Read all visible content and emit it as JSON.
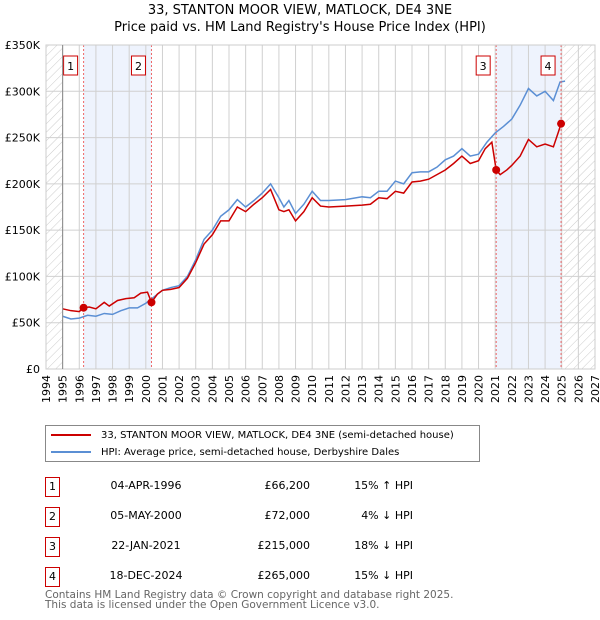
{
  "chart_data": {
    "type": "line",
    "title": "33, STANTON MOOR VIEW, MATLOCK, DE4 3NE",
    "subtitle": "Price paid vs. HM Land Registry's House Price Index (HPI)",
    "xlim": [
      1994,
      2027
    ],
    "ylim": [
      0,
      350000
    ],
    "x_ticks": [
      "1994",
      "1995",
      "1996",
      "1997",
      "1998",
      "1999",
      "2000",
      "2001",
      "2002",
      "2003",
      "2004",
      "2005",
      "2006",
      "2007",
      "2008",
      "2009",
      "2010",
      "2011",
      "2012",
      "2013",
      "2014",
      "2015",
      "2016",
      "2017",
      "2018",
      "2019",
      "2020",
      "2021",
      "2022",
      "2023",
      "2024",
      "2025",
      "2026",
      "2027"
    ],
    "y_ticks": [
      {
        "v": 0,
        "label": "£0"
      },
      {
        "v": 50000,
        "label": "£50K"
      },
      {
        "v": 100000,
        "label": "£100K"
      },
      {
        "v": 150000,
        "label": "£150K"
      },
      {
        "v": 200000,
        "label": "£200K"
      },
      {
        "v": 250000,
        "label": "£250K"
      },
      {
        "v": 300000,
        "label": "£300K"
      },
      {
        "v": 350000,
        "label": "£350K"
      }
    ],
    "grid": true,
    "series": [
      {
        "name": "33, STANTON MOOR VIEW, MATLOCK, DE4 3NE (semi-detached house)",
        "color": "#cc0000",
        "x": [
          1995,
          1995.5,
          1996,
          1996.26,
          1996.6,
          1997,
          1997.5,
          1997.8,
          1998.3,
          1998.8,
          1999.3,
          1999.7,
          2000.1,
          2000.34,
          2000.7,
          2001,
          2001.5,
          2002,
          2002.5,
          2003,
          2003.5,
          2004,
          2004.5,
          2005,
          2005.5,
          2006,
          2006.5,
          2007,
          2007.5,
          2008,
          2008.3,
          2008.6,
          2009,
          2009.5,
          2010,
          2010.5,
          2011,
          2012,
          2013,
          2013.5,
          2014,
          2014.5,
          2015,
          2015.5,
          2016,
          2016.5,
          2017,
          2017.5,
          2018,
          2018.5,
          2019,
          2019.5,
          2020,
          2020.4,
          2020.8,
          2021.06,
          2021.3,
          2021.7,
          2022,
          2022.5,
          2023,
          2023.5,
          2024,
          2024.5,
          2024.8,
          2024.96
        ],
        "y": [
          65000,
          63000,
          62000,
          66200,
          67000,
          65000,
          72000,
          68000,
          74000,
          76000,
          77000,
          82000,
          83000,
          72000,
          81000,
          85000,
          86000,
          88000,
          98000,
          115000,
          135000,
          145000,
          160000,
          160000,
          175000,
          170000,
          178000,
          185000,
          194000,
          172000,
          170000,
          172000,
          160000,
          170000,
          185000,
          176000,
          175000,
          176000,
          177000,
          178000,
          185000,
          184000,
          192000,
          190000,
          202000,
          203000,
          205000,
          210000,
          215000,
          222000,
          230000,
          222000,
          225000,
          238000,
          245000,
          215000,
          210000,
          215000,
          220000,
          230000,
          248000,
          240000,
          243000,
          240000,
          256000,
          265000
        ]
      },
      {
        "name": "HPI: Average price, semi-detached house, Derbyshire Dales",
        "color": "#5b8fd4",
        "x": [
          1995,
          1995.5,
          1996,
          1996.5,
          1997,
          1997.5,
          1998,
          1998.5,
          1999,
          1999.5,
          2000,
          2000.5,
          2001,
          2001.5,
          2002,
          2002.5,
          2003,
          2003.5,
          2004,
          2004.5,
          2005,
          2005.5,
          2006,
          2006.5,
          2007,
          2007.5,
          2008,
          2008.3,
          2008.6,
          2009,
          2009.5,
          2010,
          2010.5,
          2011,
          2012,
          2013,
          2013.5,
          2014,
          2014.5,
          2015,
          2015.5,
          2016,
          2016.5,
          2017,
          2017.5,
          2018,
          2018.5,
          2019,
          2019.5,
          2020,
          2020.5,
          2021,
          2021.5,
          2022,
          2022.5,
          2023,
          2023.5,
          2024,
          2024.5,
          2024.9,
          2025.2
        ],
        "y": [
          57000,
          54000,
          55000,
          58000,
          57000,
          60000,
          59000,
          63000,
          66000,
          66000,
          71000,
          78000,
          85000,
          88000,
          90000,
          100000,
          118000,
          140000,
          150000,
          165000,
          172000,
          183000,
          175000,
          182000,
          190000,
          200000,
          185000,
          175000,
          182000,
          168000,
          178000,
          192000,
          182000,
          182000,
          183000,
          186000,
          185000,
          192000,
          192000,
          203000,
          200000,
          212000,
          213000,
          213000,
          218000,
          226000,
          230000,
          238000,
          230000,
          232000,
          245000,
          255000,
          262000,
          270000,
          285000,
          303000,
          295000,
          300000,
          290000,
          310000,
          311000
        ]
      }
    ],
    "sales": [
      {
        "n": "1",
        "x": 1996.26,
        "date": "04-APR-1996",
        "price": "£66,200",
        "price_v": 66200,
        "hpi": "15% ↑ HPI"
      },
      {
        "n": "2",
        "x": 2000.34,
        "date": "05-MAY-2000",
        "price": "£72,000",
        "price_v": 72000,
        "hpi": "4% ↓ HPI"
      },
      {
        "n": "3",
        "x": 2021.06,
        "date": "22-JAN-2021",
        "price": "£215,000",
        "price_v": 215000,
        "hpi": "18% ↓ HPI"
      },
      {
        "n": "4",
        "x": 2024.96,
        "date": "18-DEC-2024",
        "price": "£265,000",
        "price_v": 265000,
        "hpi": "15% ↓ HPI"
      }
    ],
    "shaded_ranges": [
      [
        1996.26,
        2000.34
      ],
      [
        2021.06,
        2024.96
      ]
    ],
    "hatched_before": 1995,
    "hatched_after": 2025.1
  },
  "footer": {
    "line1": "Contains HM Land Registry data © Crown copyright and database right 2025.",
    "line2": "This data is licensed under the Open Government Licence v3.0."
  }
}
